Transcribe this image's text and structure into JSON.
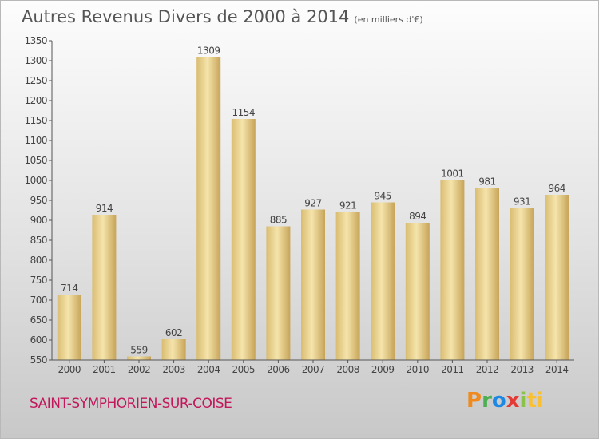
{
  "chart_data": {
    "type": "bar",
    "title": "Autres Revenus Divers de 2000 à 2014",
    "unit_label": "(en milliers d'€)",
    "categories": [
      "2000",
      "2001",
      "2002",
      "2003",
      "2004",
      "2005",
      "2006",
      "2007",
      "2008",
      "2009",
      "2010",
      "2011",
      "2012",
      "2013",
      "2014"
    ],
    "values": [
      714,
      914,
      559,
      602,
      1309,
      1154,
      885,
      927,
      921,
      945,
      894,
      1001,
      981,
      931,
      964
    ],
    "ylim": [
      550,
      1350
    ],
    "yticks": [
      550,
      600,
      650,
      700,
      750,
      800,
      850,
      900,
      950,
      1000,
      1050,
      1100,
      1150,
      1200,
      1250,
      1300,
      1350
    ],
    "xlabel": "",
    "ylabel": "",
    "grid": false
  },
  "location": "SAINT-SYMPHORIEN-SUR-COISE",
  "logo": {
    "letters": [
      "P",
      "r",
      "o",
      "x",
      "i",
      "ti"
    ],
    "colors": [
      "#f08a1c",
      "#4caf50",
      "#1e88e5",
      "#e53935",
      "#8bc34a",
      "#fbc02d"
    ]
  },
  "colors": {
    "bar_light": "#f3dfa2",
    "bar_dark": "#c9a75a",
    "axis": "#555555",
    "city": "#c2185b"
  }
}
